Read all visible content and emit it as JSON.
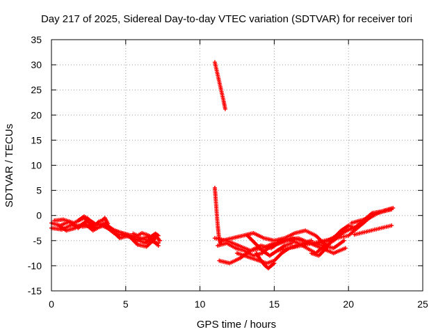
{
  "chart_data": {
    "type": "scatter",
    "title": "Day 217 of 2025, Sidereal Day-to-day VTEC variation (SDTVAR) for receiver tori",
    "xlabel": "GPS time / hours",
    "ylabel": "SDTVAR / TECUs",
    "xlim": [
      0,
      25
    ],
    "ylim": [
      -15,
      35
    ],
    "xticks": [
      0,
      5,
      10,
      15,
      20,
      25
    ],
    "yticks": [
      -15,
      -10,
      -5,
      0,
      5,
      10,
      15,
      20,
      25,
      30,
      35
    ],
    "grid": true,
    "marker": "+",
    "color": "#ff0000",
    "series": [
      {
        "name": "SDTVAR",
        "tracks": [
          {
            "x": [
              0.0,
              0.6,
              1.2,
              1.8,
              2.4,
              3.0,
              3.6,
              4.2,
              4.8,
              5.4,
              6.0,
              6.6,
              7.2
            ],
            "y": [
              -1.5,
              -2.0,
              -1.2,
              -2.5,
              -1.0,
              -2.0,
              -1.5,
              -3.0,
              -3.5,
              -4.0,
              -4.5,
              -5.0,
              -5.5
            ]
          },
          {
            "x": [
              0.0,
              0.7,
              1.4,
              2.1,
              2.8,
              3.5,
              4.2,
              4.9,
              5.6,
              6.3,
              7.0,
              7.3
            ],
            "y": [
              -2.5,
              -2.8,
              -1.8,
              -2.2,
              -2.0,
              -1.8,
              -3.5,
              -4.0,
              -4.5,
              -5.5,
              -4.0,
              -5.0
            ]
          },
          {
            "x": [
              0.2,
              0.8,
              1.5,
              2.2,
              2.9,
              3.6,
              4.3,
              5.0,
              5.8,
              6.5,
              7.2
            ],
            "y": [
              -1.0,
              -0.8,
              -1.5,
              -0.5,
              -2.5,
              -2.0,
              -3.0,
              -3.8,
              -5.0,
              -4.2,
              -6.0
            ]
          },
          {
            "x": [
              0.5,
              1.0,
              1.6,
              2.2,
              2.8,
              3.4,
              4.0,
              4.6,
              5.2,
              5.8,
              6.4,
              7.0
            ],
            "y": [
              -2.0,
              -3.0,
              -2.5,
              -1.5,
              -3.0,
              -2.0,
              -2.8,
              -4.5,
              -4.0,
              -5.8,
              -6.2,
              -4.5
            ]
          },
          {
            "x": [
              1.8,
              2.0,
              2.2,
              2.4,
              2.6,
              2.8,
              3.0,
              3.2,
              3.4,
              3.6,
              3.8
            ],
            "y": [
              -1.0,
              -0.6,
              -0.2,
              -0.5,
              -1.0,
              -1.4,
              -1.8,
              -1.2,
              -1.0,
              -0.5,
              -1.6
            ]
          },
          {
            "x": [
              5.5,
              5.8,
              6.1,
              6.4,
              6.7,
              7.0,
              7.2
            ],
            "y": [
              -3.6,
              -4.0,
              -3.5,
              -3.8,
              -4.2,
              -3.6,
              -4.0
            ]
          },
          {
            "x": [
              11.0,
              11.1,
              11.2,
              11.3,
              11.4,
              11.5,
              11.6,
              11.7
            ],
            "y": [
              30.5,
              29.2,
              27.9,
              26.6,
              25.3,
              24.0,
              22.7,
              21.2
            ]
          },
          {
            "x": [
              11.0,
              11.05,
              11.1,
              11.15,
              11.2,
              11.25,
              11.3,
              11.35,
              11.4
            ],
            "y": [
              5.5,
              3.6,
              1.6,
              -0.4,
              -2.1,
              -3.6,
              -4.6,
              -5.2,
              -5.6
            ]
          },
          {
            "x": [
              11.3,
              12.0,
              12.7,
              13.4,
              14.1,
              14.8,
              15.5,
              16.2,
              16.9,
              17.6,
              18.3,
              19.0,
              19.7
            ],
            "y": [
              -9.0,
              -9.5,
              -8.5,
              -7.0,
              -6.0,
              -6.5,
              -5.0,
              -4.5,
              -5.0,
              -5.5,
              -6.0,
              -6.5,
              -5.0
            ]
          },
          {
            "x": [
              11.2,
              11.8,
              12.4,
              13.0,
              13.6,
              14.2,
              14.8,
              15.4,
              16.0,
              16.6,
              17.2,
              17.8,
              18.4,
              19.0,
              19.6,
              20.2
            ],
            "y": [
              -6.0,
              -5.5,
              -6.5,
              -7.0,
              -8.0,
              -7.5,
              -6.0,
              -5.5,
              -4.8,
              -5.5,
              -6.5,
              -7.5,
              -6.0,
              -5.0,
              -3.5,
              -2.5
            ]
          },
          {
            "x": [
              11.0,
              11.8,
              12.6,
              13.4,
              14.2,
              15.0,
              15.8,
              16.6,
              17.4,
              18.2,
              19.0,
              19.8
            ],
            "y": [
              -4.5,
              -5.0,
              -6.0,
              -7.0,
              -6.5,
              -5.5,
              -5.0,
              -4.5,
              -5.5,
              -6.5,
              -7.5,
              -6.5
            ]
          },
          {
            "x": [
              11.5,
              12.2,
              12.9,
              13.6,
              14.3,
              15.0,
              15.7,
              16.4,
              17.1,
              17.8,
              18.5
            ],
            "y": [
              -5.0,
              -4.5,
              -4.0,
              -3.5,
              -4.5,
              -5.0,
              -4.5,
              -3.5,
              -3.0,
              -4.0,
              -6.0
            ]
          },
          {
            "x": [
              12.5,
              13.0,
              13.5,
              14.0,
              14.5,
              15.0,
              15.5,
              16.0,
              16.5,
              17.0,
              17.5
            ],
            "y": [
              -7.5,
              -8.0,
              -8.5,
              -9.0,
              -9.5,
              -9.0,
              -7.5,
              -6.5,
              -6.0,
              -5.5,
              -5.0
            ]
          },
          {
            "x": [
              13.2,
              13.7,
              14.2,
              14.7,
              15.2,
              15.7,
              16.2
            ],
            "y": [
              -4.0,
              -5.5,
              -7.0,
              -8.0,
              -7.0,
              -6.0,
              -5.5
            ]
          },
          {
            "x": [
              13.8,
              14.0,
              14.2,
              14.4,
              14.6,
              14.8,
              15.0
            ],
            "y": [
              -7.5,
              -8.5,
              -9.3,
              -10.0,
              -10.5,
              -10.0,
              -9.5
            ]
          },
          {
            "x": [
              15.2,
              16.0,
              16.8,
              17.6,
              18.4,
              19.2,
              20.0,
              20.8,
              21.6,
              22.4,
              23.0
            ],
            "y": [
              -7.0,
              -6.5,
              -6.0,
              -5.5,
              -5.0,
              -4.5,
              -4.0,
              -2.0,
              0.0,
              1.0,
              1.5
            ]
          },
          {
            "x": [
              18.0,
              18.6,
              19.2,
              19.8,
              20.4,
              21.0,
              21.6,
              22.2,
              22.8
            ],
            "y": [
              -5.5,
              -5.0,
              -4.0,
              -3.0,
              -2.5,
              -1.0,
              0.5,
              0.8,
              1.2
            ]
          },
          {
            "x": [
              17.5,
              18.0,
              18.5,
              19.0,
              19.5,
              20.0,
              20.5,
              21.0
            ],
            "y": [
              -7.5,
              -8.0,
              -6.5,
              -4.5,
              -3.0,
              -2.0,
              -2.5,
              -1.5
            ]
          },
          {
            "x": [
              20.2,
              20.8,
              21.4,
              22.0,
              22.6,
              22.9
            ],
            "y": [
              -1.5,
              -1.0,
              -0.5,
              0.5,
              1.0,
              1.2
            ]
          },
          {
            "x": [
              20.4,
              22.9
            ],
            "y": [
              -3.8,
              -2.0
            ]
          }
        ]
      }
    ]
  }
}
